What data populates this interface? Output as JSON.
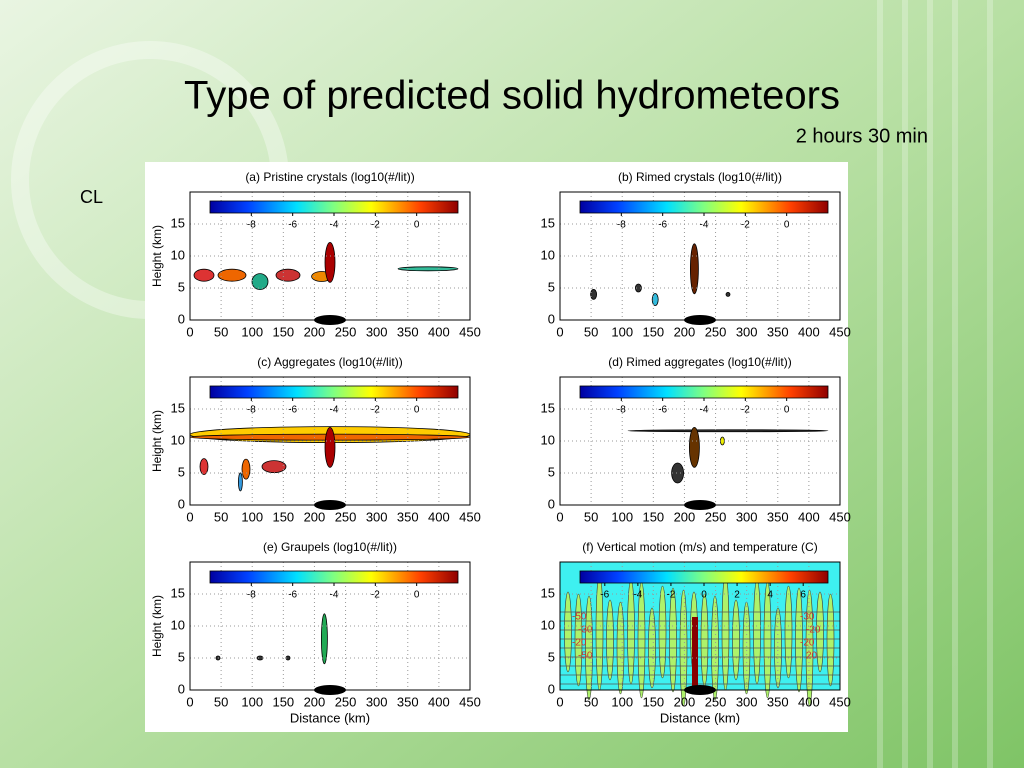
{
  "slide": {
    "title": "Type of predicted solid hydrometeors",
    "subtitle": "2 hours 30 min",
    "label": "CL"
  },
  "axes": {
    "xlim": [
      0,
      450
    ],
    "ylim": [
      0,
      20
    ],
    "xticks": [
      0,
      50,
      100,
      150,
      200,
      250,
      300,
      350,
      400,
      450
    ],
    "yticks": [
      0,
      5,
      10,
      15
    ],
    "ylabel": "Height (km)",
    "xlabel": "Distance (km)"
  },
  "colorbar": {
    "lim": [
      -10,
      2
    ],
    "ticks": [
      -8,
      -6,
      -4,
      -2,
      0
    ]
  },
  "colorbar_f": {
    "lim": [
      -7.5,
      7.5
    ],
    "ticks": [
      -6,
      -4,
      -2,
      0,
      2,
      4,
      6
    ]
  },
  "panels": [
    {
      "title": "(a) Pristine crystals (log10(#/lit))"
    },
    {
      "title": "(b) Rimed crystals (log10(#/lit))"
    },
    {
      "title": "(c) Aggregates (log10(#/lit))"
    },
    {
      "title": "(d) Rimed aggregates (log10(#/lit))"
    },
    {
      "title": "(e) Graupels (log10(#/lit))"
    },
    {
      "title": "(f) Vertical motion (m/s) and temperature (C)"
    }
  ],
  "contour_labels": [
    "-50",
    "-30",
    "-20",
    "-50",
    "-30",
    "-20",
    "-20",
    "20"
  ]
}
